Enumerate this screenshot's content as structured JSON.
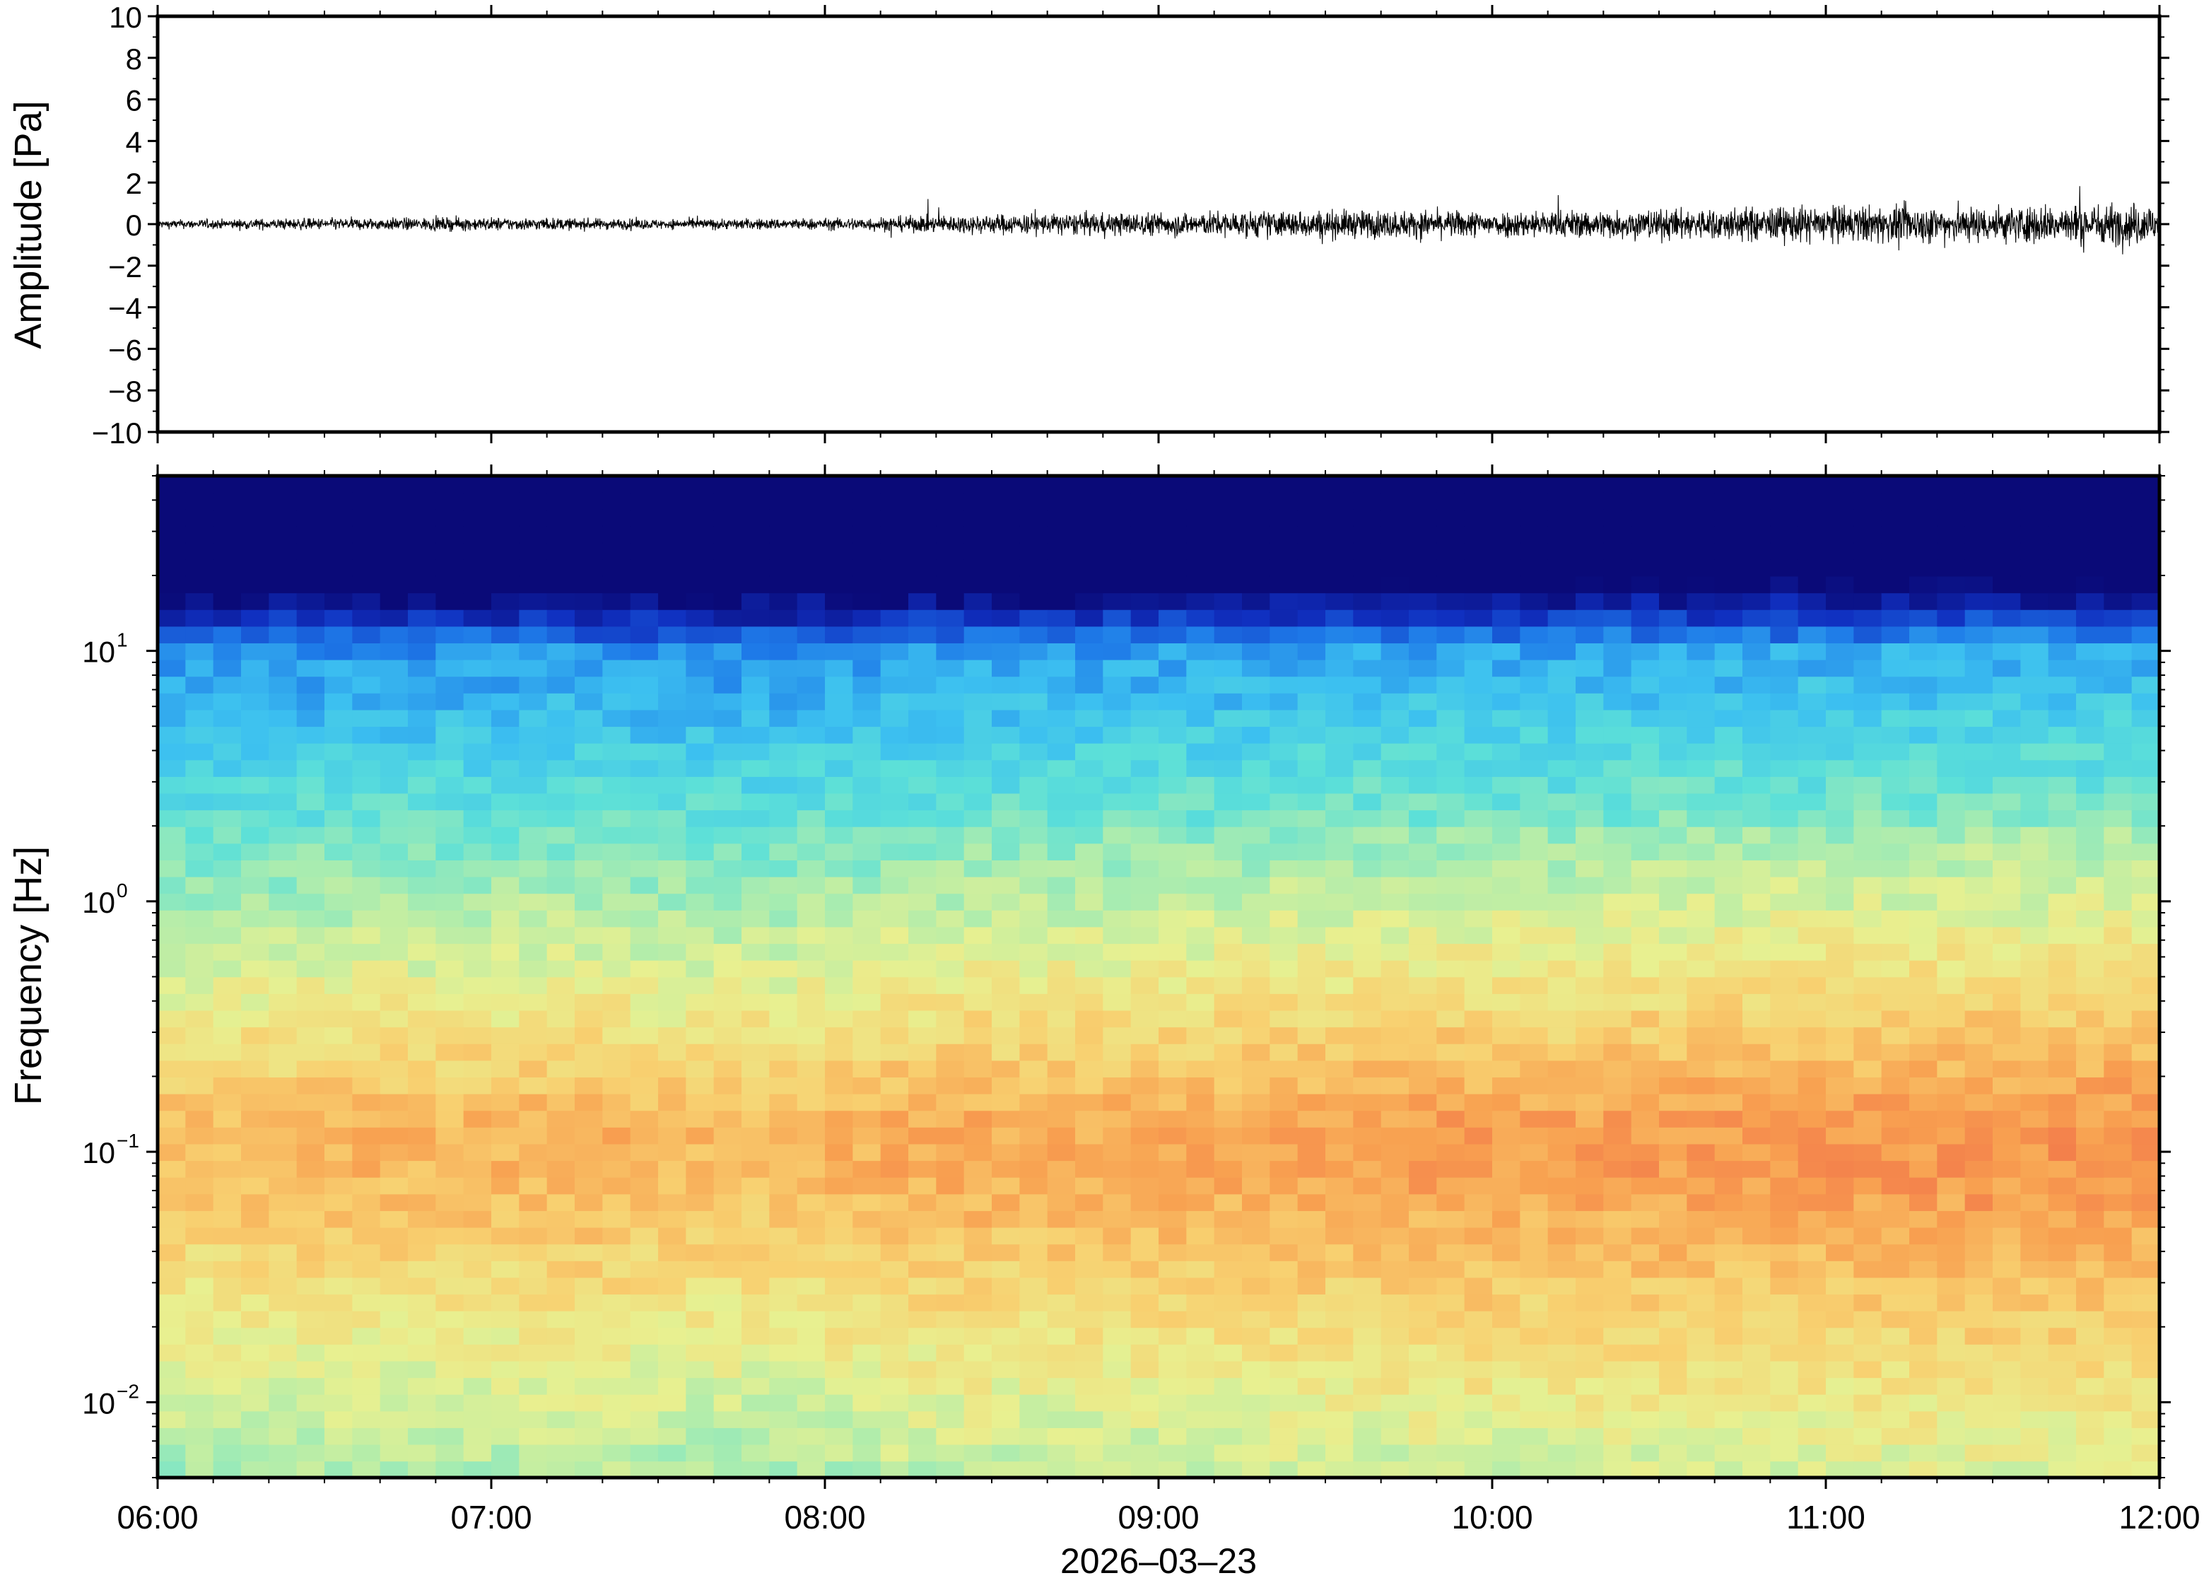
{
  "chart_data": [
    {
      "type": "line",
      "ylabel": "Amplitude [Pa]",
      "ylim": [
        -10,
        10
      ],
      "yticks": [
        10,
        8,
        6,
        4,
        2,
        0,
        -2,
        -4,
        -6,
        -8,
        -10
      ],
      "ytick_labels": [
        "10",
        "8",
        "6",
        "4",
        "2",
        "0",
        "−2",
        "−4",
        "−6",
        "−8",
        "−10"
      ],
      "xlim": [
        "06:00",
        "12:00"
      ],
      "grid": false,
      "series": [
        {
          "color": "#000000",
          "x_start": "06:00",
          "x_end": "12:00",
          "envelope_hours": [
            6.0,
            6.5,
            7.0,
            7.5,
            8.0,
            8.5,
            9.0,
            9.5,
            10.0,
            10.5,
            11.0,
            11.5,
            12.0
          ],
          "envelope_amplitude": [
            0.25,
            0.35,
            0.4,
            0.3,
            0.35,
            0.6,
            0.7,
            0.85,
            0.8,
            0.9,
            1.1,
            1.1,
            1.3
          ]
        }
      ]
    },
    {
      "type": "heatmap",
      "ylabel": "Frequency [Hz]",
      "yscale": "log",
      "ylim": [
        0.005,
        50
      ],
      "yticks": [
        0.01,
        0.1,
        1,
        10
      ],
      "ytick_labels": [
        {
          "base": "10",
          "exp": "−2"
        },
        {
          "base": "10",
          "exp": "−1"
        },
        {
          "base": "10",
          "exp": "0"
        },
        {
          "base": "10",
          "exp": "1"
        }
      ],
      "xlim": [
        "06:00",
        "12:00"
      ],
      "xticks": [
        "06:00",
        "07:00",
        "08:00",
        "09:00",
        "10:00",
        "11:00",
        "12:00"
      ],
      "xlabel": "2026‒03‒23",
      "colormap": [
        "#0a0a78",
        "#1030c0",
        "#1e7ae8",
        "#3cc0f0",
        "#5ce0d8",
        "#a8ecb0",
        "#e8f090",
        "#f8d070",
        "#f8a050",
        "#f06848"
      ],
      "time_bins": 72,
      "freq_bins": 60
    }
  ]
}
